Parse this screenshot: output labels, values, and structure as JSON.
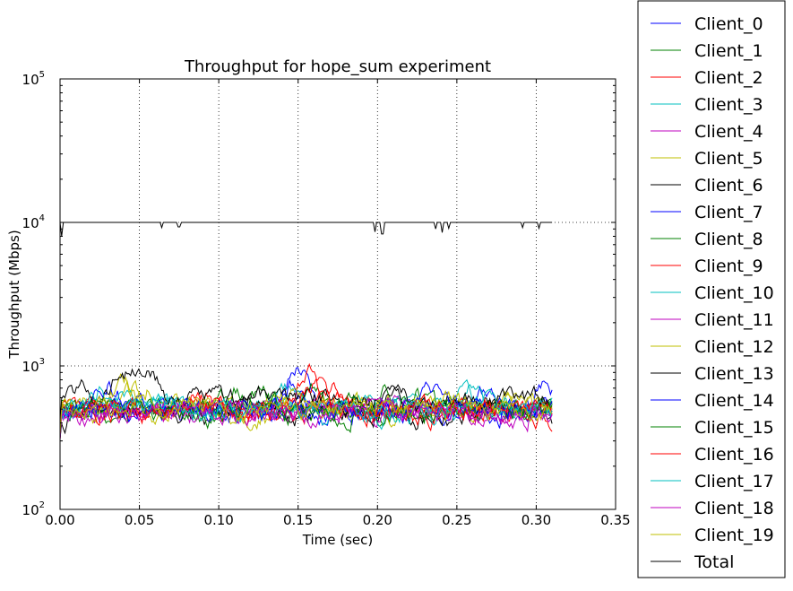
{
  "chart_data": {
    "type": "line",
    "title": "Throughput for hope_sum experiment",
    "xlabel": "Time (sec)",
    "ylabel": "Throughput (Mbps)",
    "xlim": [
      0.0,
      0.35
    ],
    "ylim": [
      100,
      100000
    ],
    "yscale": "log",
    "grid": true,
    "legend_position": "outside-right",
    "x_ticks": [
      "0.00",
      "0.05",
      "0.10",
      "0.15",
      "0.20",
      "0.25",
      "0.30",
      "0.35"
    ],
    "x_tick_values": [
      0.0,
      0.05,
      0.1,
      0.15,
      0.2,
      0.25,
      0.3,
      0.35
    ],
    "y_ticks": [
      {
        "base": "10",
        "exp": "2",
        "value": 100
      },
      {
        "base": "10",
        "exp": "3",
        "value": 1000
      },
      {
        "base": "10",
        "exp": "4",
        "value": 10000
      },
      {
        "base": "10",
        "exp": "5",
        "value": 100000
      }
    ],
    "x_range_data": [
      0.0,
      0.31
    ],
    "series": [
      {
        "name": "Client_0",
        "color": "#0000ff",
        "typical": 500,
        "seed": 11,
        "bumps": [
          [
            0.15,
            1.9
          ],
          [
            0.305,
            1.6
          ],
          [
            0.27,
            1.3
          ]
        ]
      },
      {
        "name": "Client_1",
        "color": "#008000",
        "typical": 500,
        "seed": 23,
        "bumps": [
          [
            0.11,
            1.35
          ],
          [
            0.16,
            1.5
          ],
          [
            0.205,
            1.3
          ]
        ]
      },
      {
        "name": "Client_2",
        "color": "#ff0000",
        "typical": 490,
        "seed": 37,
        "bumps": [
          [
            0.155,
            1.9
          ],
          [
            0.175,
            1.5
          ],
          [
            0.09,
            1.2
          ]
        ]
      },
      {
        "name": "Client_3",
        "color": "#00bfbf",
        "typical": 500,
        "seed": 41,
        "bumps": [
          [
            0.14,
            1.5
          ],
          [
            0.255,
            1.35
          ],
          [
            0.065,
            1.25
          ]
        ]
      },
      {
        "name": "Client_4",
        "color": "#bf00bf",
        "typical": 470,
        "seed": 53,
        "bumps": [
          [
            0.215,
            1.3
          ],
          [
            0.16,
            1.25
          ]
        ]
      },
      {
        "name": "Client_5",
        "color": "#bfbf00",
        "typical": 510,
        "seed": 67,
        "bumps": [
          [
            0.045,
            1.3
          ],
          [
            0.19,
            1.2
          ],
          [
            0.28,
            1.25
          ]
        ]
      },
      {
        "name": "Client_6",
        "color": "#000000",
        "typical": 480,
        "seed": 71,
        "bumps": [
          [
            0.21,
            1.4
          ],
          [
            0.12,
            1.15
          ]
        ]
      },
      {
        "name": "Client_7",
        "color": "#0000ff",
        "typical": 500,
        "seed": 83,
        "bumps": [
          [
            0.03,
            1.6
          ],
          [
            0.145,
            1.45
          ]
        ]
      },
      {
        "name": "Client_8",
        "color": "#008000",
        "typical": 490,
        "seed": 97,
        "bumps": [
          [
            0.125,
            1.4
          ],
          [
            0.225,
            1.3
          ]
        ]
      },
      {
        "name": "Client_9",
        "color": "#ff0000",
        "typical": 480,
        "seed": 101,
        "bumps": [
          [
            0.17,
            1.4
          ],
          [
            0.095,
            1.25
          ]
        ]
      },
      {
        "name": "Client_10",
        "color": "#00bfbf",
        "typical": 510,
        "seed": 113,
        "bumps": [
          [
            0.035,
            1.25
          ],
          [
            0.26,
            1.3
          ]
        ]
      },
      {
        "name": "Client_11",
        "color": "#bf00bf",
        "typical": 470,
        "seed": 127,
        "bumps": [
          [
            0.16,
            1.2
          ],
          [
            0.07,
            1.15
          ]
        ]
      },
      {
        "name": "Client_12",
        "color": "#bfbf00",
        "typical": 520,
        "seed": 131,
        "bumps": [
          [
            0.04,
            1.45
          ],
          [
            0.145,
            1.2
          ]
        ]
      },
      {
        "name": "Client_13",
        "color": "#000000",
        "typical": 600,
        "seed": 139,
        "bumps": [
          [
            0.04,
            1.55
          ],
          [
            0.055,
            1.45
          ],
          [
            0.015,
            1.2
          ]
        ]
      },
      {
        "name": "Client_14",
        "color": "#0000ff",
        "typical": 500,
        "seed": 149,
        "bumps": [
          [
            0.05,
            1.25
          ],
          [
            0.235,
            1.3
          ]
        ]
      },
      {
        "name": "Client_15",
        "color": "#008000",
        "typical": 490,
        "seed": 157,
        "bumps": [
          [
            0.13,
            1.3
          ],
          [
            0.18,
            1.2
          ]
        ]
      },
      {
        "name": "Client_16",
        "color": "#ff0000",
        "typical": 500,
        "seed": 163,
        "bumps": [
          [
            0.16,
            1.5
          ],
          [
            0.085,
            1.3
          ]
        ]
      },
      {
        "name": "Client_17",
        "color": "#00bfbf",
        "typical": 490,
        "seed": 173,
        "bumps": [
          [
            0.025,
            1.3
          ],
          [
            0.275,
            1.25
          ]
        ]
      },
      {
        "name": "Client_18",
        "color": "#bf00bf",
        "typical": 480,
        "seed": 181,
        "bumps": [
          [
            0.09,
            1.2
          ],
          [
            0.2,
            1.15
          ]
        ]
      },
      {
        "name": "Client_19",
        "color": "#bfbf00",
        "typical": 510,
        "seed": 191,
        "bumps": [
          [
            0.055,
            1.4
          ],
          [
            0.245,
            1.2
          ]
        ]
      },
      {
        "name": "Total",
        "color": "#000000",
        "typical": 10000,
        "is_total": true,
        "dips": [
          [
            0.001,
            8000
          ],
          [
            0.064,
            9200
          ],
          [
            0.075,
            9300
          ],
          [
            0.198,
            8600
          ],
          [
            0.203,
            8300
          ],
          [
            0.237,
            9000
          ],
          [
            0.241,
            8500
          ],
          [
            0.245,
            9100
          ],
          [
            0.291,
            9200
          ],
          [
            0.302,
            9100
          ]
        ]
      }
    ]
  }
}
